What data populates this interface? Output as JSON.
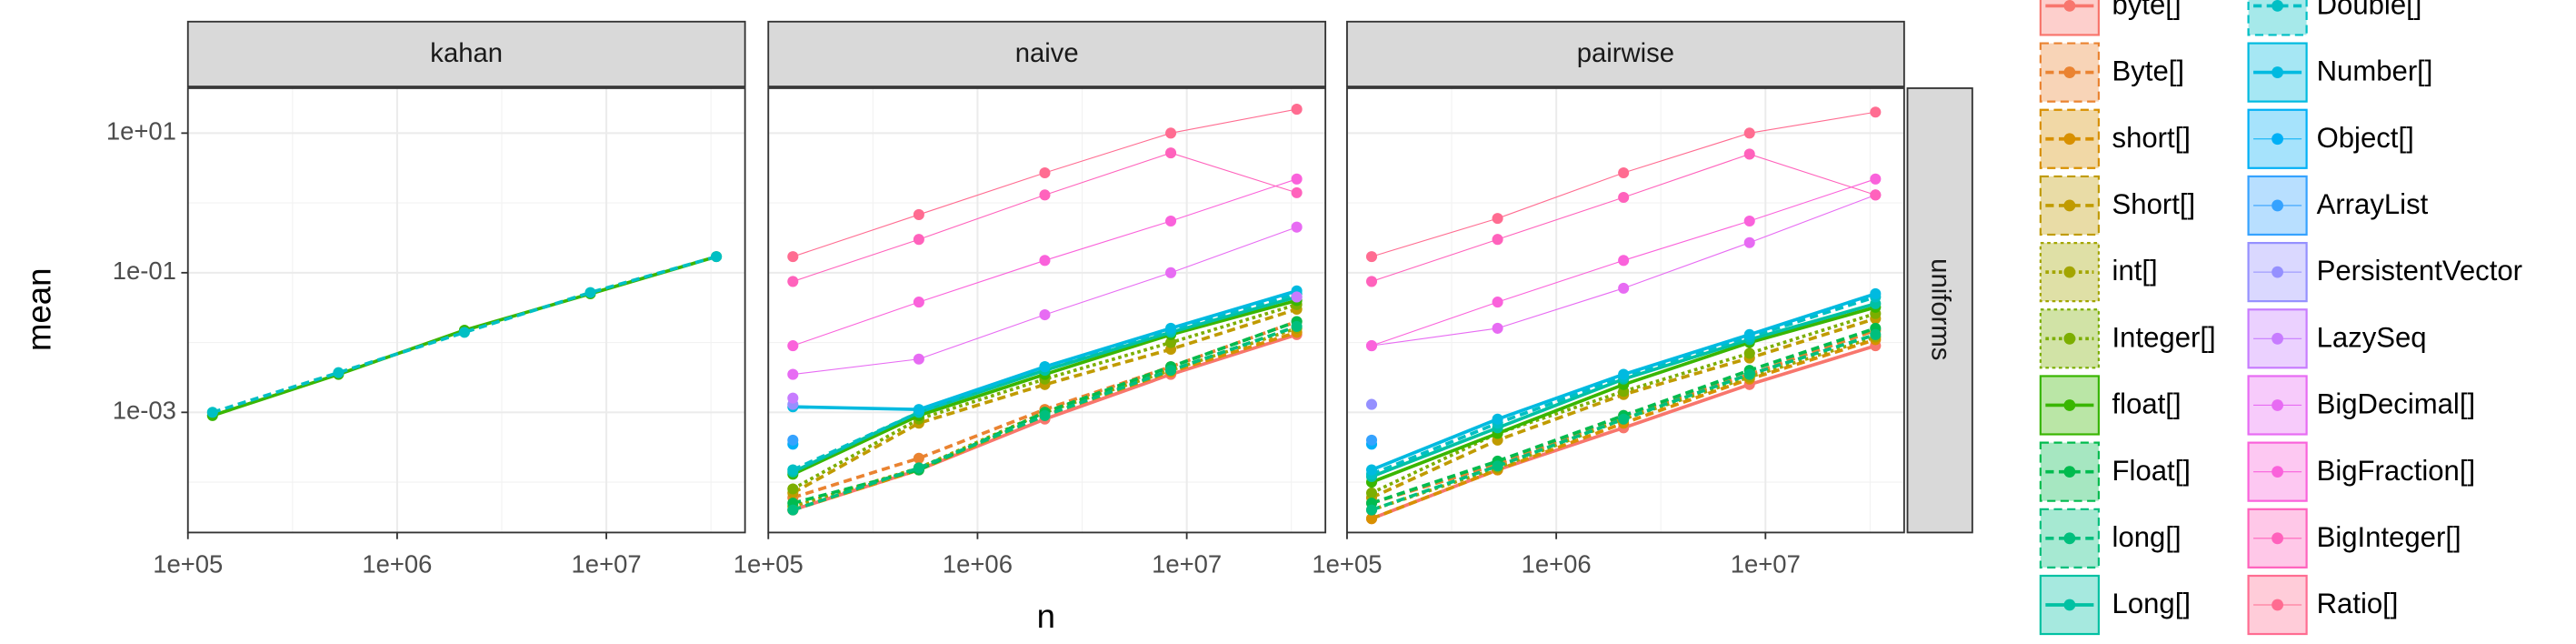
{
  "chart_data": {
    "type": "line",
    "x_label": "n",
    "y_label": "mean",
    "facets": [
      "kahan",
      "naive",
      "pairwise"
    ],
    "row_facet": "uniforms",
    "log_x": true,
    "log_y": true,
    "grid": true,
    "x": [
      131072,
      524288,
      2097152,
      8388608,
      33554432
    ],
    "xlim": [
      100000,
      46000000
    ],
    "ylim": [
      1.9e-05,
      44
    ],
    "xticks": [
      {
        "value": 100000,
        "label": "1e+05"
      },
      {
        "value": 1000000,
        "label": "1e+06"
      },
      {
        "value": 10000000,
        "label": "1e+07"
      }
    ],
    "yticks": [
      {
        "value": 10,
        "label": "1e+01"
      },
      {
        "value": 0.1,
        "label": "1e-01"
      },
      {
        "value": 0.001,
        "label": "1e-03"
      }
    ],
    "series": [
      {
        "name": "byte[]",
        "color": "#F8766D",
        "linetype": "solid",
        "values": [
          null,
          [
            4e-05,
            0.00015,
            0.0008,
            0.0035,
            0.013
          ],
          [
            3e-05,
            0.00015,
            0.0006,
            0.0025,
            0.009
          ]
        ]
      },
      {
        "name": "Byte[]",
        "color": "#EA8331",
        "linetype": "dashed",
        "values": [
          null,
          [
            6e-05,
            0.00022,
            0.0011,
            0.0045,
            0.02
          ],
          [
            5e-05,
            0.00018,
            0.0009,
            0.0035,
            0.015
          ]
        ]
      },
      {
        "name": "short[]",
        "color": "#D89000",
        "linetype": "dashed",
        "values": [
          null,
          [
            4e-05,
            0.00015,
            0.0009,
            0.0038,
            0.014
          ],
          [
            3e-05,
            0.00015,
            0.0007,
            0.003,
            0.011
          ]
        ]
      },
      {
        "name": "Short[]",
        "color": "#C09B00",
        "linetype": "dashed",
        "values": [
          null,
          [
            7e-05,
            0.0007,
            0.0025,
            0.008,
            0.03
          ],
          [
            6e-05,
            0.0004,
            0.0018,
            0.006,
            0.022
          ]
        ]
      },
      {
        "name": "int[]",
        "color": "#A3A500",
        "linetype": "dotted",
        "values": [
          null,
          [
            4.5e-05,
            0.00016,
            0.001,
            0.004,
            0.016
          ],
          [
            4e-05,
            0.00016,
            0.0008,
            0.0032,
            0.012
          ]
        ]
      },
      {
        "name": "Integer[]",
        "color": "#7CAE00",
        "linetype": "dotted",
        "values": [
          null,
          [
            8e-05,
            0.0008,
            0.003,
            0.01,
            0.035
          ],
          [
            7e-05,
            0.0005,
            0.002,
            0.007,
            0.026
          ]
        ]
      },
      {
        "name": "float[]",
        "color": "#39B600",
        "linetype": "solid",
        "values": [
          [
            0.0009,
            0.0035,
            0.015,
            0.05,
            0.17
          ],
          [
            0.00013,
            0.0009,
            0.0035,
            0.013,
            0.04
          ],
          [
            0.0001,
            0.0005,
            0.0025,
            0.01,
            0.032
          ]
        ]
      },
      {
        "name": "Float[]",
        "color": "#00BB4E",
        "linetype": "dashed",
        "values": [
          null,
          [
            5e-05,
            0.00015,
            0.001,
            0.0045,
            0.02
          ],
          [
            5e-05,
            0.0002,
            0.0009,
            0.004,
            0.016
          ]
        ]
      },
      {
        "name": "long[]",
        "color": "#00BF7D",
        "linetype": "dashed",
        "values": [
          null,
          [
            4e-05,
            0.00016,
            0.0009,
            0.004,
            0.017
          ],
          [
            4e-05,
            0.00017,
            0.0008,
            0.0035,
            0.013
          ]
        ]
      },
      {
        "name": "Long[]",
        "color": "#00C1A3",
        "linetype": "solid",
        "values": [
          null,
          [
            0.00014,
            0.001,
            0.004,
            0.014,
            0.045
          ],
          [
            0.00012,
            0.0006,
            0.003,
            0.011,
            0.036
          ]
        ]
      },
      {
        "name": "Double[]",
        "color": "#00BFC4",
        "linetype": "dashed",
        "values": [
          [
            0.001,
            0.0037,
            0.014,
            0.052,
            0.17
          ],
          [
            0.00015,
            0.001,
            0.0045,
            0.015,
            0.05
          ],
          [
            0.00013,
            0.0007,
            0.0032,
            0.012,
            0.045
          ]
        ]
      },
      {
        "name": "Number[]",
        "color": "#00BAE0",
        "linetype": "solid",
        "values": [
          null,
          [
            0.0012,
            0.0011,
            0.0045,
            0.016,
            0.055
          ],
          [
            0.00015,
            0.0008,
            0.0035,
            0.013,
            0.05
          ]
        ]
      },
      {
        "name": "Object[]",
        "color": "#00B0F6",
        "linetype": "thin",
        "values": [
          null,
          [
            0.00035,
            null,
            null,
            null,
            null
          ],
          [
            0.00035,
            null,
            null,
            null,
            null
          ]
        ]
      },
      {
        "name": "ArrayList",
        "color": "#35A2FF",
        "linetype": "thin",
        "values": [
          null,
          [
            0.0004,
            null,
            null,
            null,
            null
          ],
          [
            0.0004,
            null,
            null,
            null,
            null
          ]
        ]
      },
      {
        "name": "PersistentVector",
        "color": "#9590FF",
        "linetype": "thin",
        "values": [
          null,
          [
            0.0013,
            null,
            null,
            null,
            null
          ],
          [
            0.0013,
            null,
            null,
            null,
            null
          ]
        ]
      },
      {
        "name": "LazySeq",
        "color": "#C77CFF",
        "linetype": "thin",
        "values": [
          null,
          [
            0.0016,
            null,
            null,
            null,
            0.045
          ],
          null
        ]
      },
      {
        "name": "BigDecimal[]",
        "color": "#E76BF3",
        "linetype": "thin",
        "values": [
          null,
          [
            0.0035,
            0.0058,
            0.025,
            0.1,
            0.45
          ],
          [
            0.009,
            0.016,
            0.06,
            0.27,
            1.3
          ]
        ]
      },
      {
        "name": "BigFraction[]",
        "color": "#FA62DB",
        "linetype": "thin",
        "values": [
          null,
          [
            0.009,
            0.038,
            0.15,
            0.55,
            2.2
          ],
          [
            0.009,
            0.038,
            0.15,
            0.55,
            2.2
          ]
        ]
      },
      {
        "name": "BigInteger[]",
        "color": "#FF62BC",
        "linetype": "thin",
        "values": [
          null,
          [
            0.075,
            0.3,
            1.3,
            5.2,
            1.4
          ],
          [
            0.075,
            0.3,
            1.2,
            5,
            1.3
          ]
        ]
      },
      {
        "name": "Ratio[]",
        "color": "#FF6C91",
        "linetype": "thin",
        "values": [
          null,
          [
            0.17,
            0.68,
            2.7,
            10,
            22
          ],
          [
            0.17,
            0.6,
            2.7,
            10,
            20
          ]
        ]
      }
    ]
  }
}
